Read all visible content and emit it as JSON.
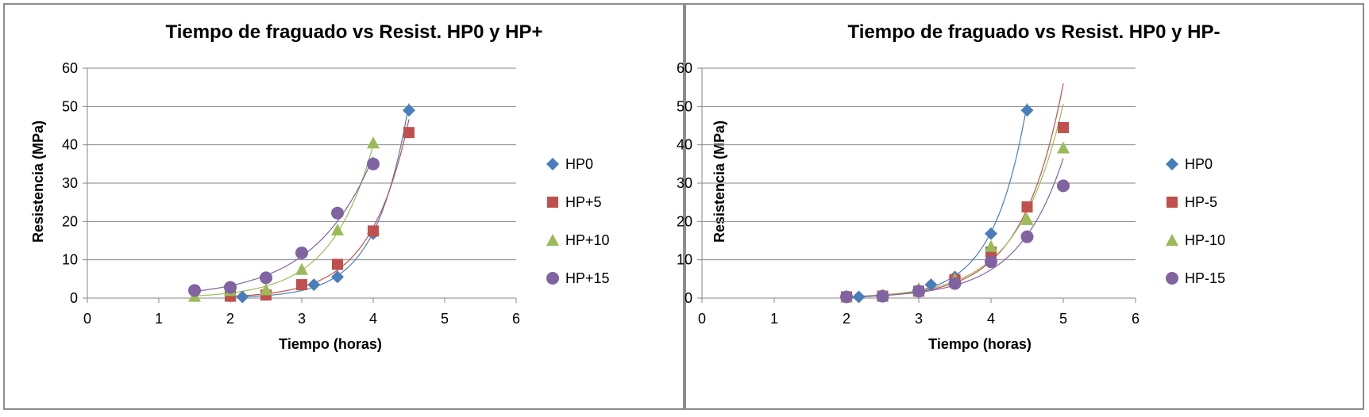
{
  "chart_data": [
    {
      "type": "scatter",
      "title": "Tiempo de fraguado vs Resist. HP0 y HP+",
      "xlabel": "Tiempo (horas)",
      "ylabel": "Resistencia (MPa)",
      "xlim": [
        0,
        6
      ],
      "ylim": [
        0,
        60
      ],
      "xticks": [
        "0",
        "1",
        "2",
        "3",
        "4",
        "5",
        "6"
      ],
      "yticks": [
        "0",
        "10",
        "20",
        "30",
        "40",
        "50",
        "60"
      ],
      "grid": "horizontal",
      "legend_position": "right",
      "trendline": "exponential",
      "series": [
        {
          "name": "HP0",
          "marker": "diamond",
          "color": "#4a7ebb",
          "x": [
            2.17,
            3.17,
            3.5,
            4.0,
            4.5
          ],
          "y": [
            0.3,
            3.5,
            5.5,
            16.8,
            49.0
          ],
          "trend_x": [
            2.17,
            4.5
          ]
        },
        {
          "name": "HP+5",
          "marker": "square",
          "color": "#c0504d",
          "x": [
            2.0,
            2.5,
            3.0,
            3.5,
            4.0,
            4.5
          ],
          "y": [
            0.5,
            0.8,
            3.5,
            8.8,
            17.5,
            43.2
          ],
          "trend_x": [
            2.0,
            4.5
          ]
        },
        {
          "name": "HP+10",
          "marker": "triangle",
          "color": "#9bbb59",
          "x": [
            1.5,
            2.0,
            2.5,
            3.0,
            3.5,
            4.0
          ],
          "y": [
            0.5,
            2.0,
            2.2,
            7.5,
            17.8,
            40.5
          ],
          "trend_x": [
            1.5,
            4.0
          ]
        },
        {
          "name": "HP+15",
          "marker": "circle",
          "color": "#8064a2",
          "x": [
            1.5,
            2.0,
            2.5,
            3.0,
            3.5,
            4.0
          ],
          "y": [
            2.0,
            2.8,
            5.3,
            11.8,
            22.2,
            35.0
          ],
          "trend_x": [
            1.5,
            4.0
          ]
        }
      ]
    },
    {
      "type": "scatter",
      "title": "Tiempo de fraguado vs Resist. HP0 y HP-",
      "xlabel": "Tiempo (horas)",
      "ylabel": "Resistencia (MPa)",
      "xlim": [
        0,
        6
      ],
      "ylim": [
        0,
        60
      ],
      "xticks": [
        "0",
        "1",
        "2",
        "3",
        "4",
        "5",
        "6"
      ],
      "yticks": [
        "0",
        "10",
        "20",
        "30",
        "40",
        "50",
        "60"
      ],
      "grid": "horizontal",
      "legend_position": "right",
      "trendline": "exponential",
      "series": [
        {
          "name": "HP0",
          "marker": "diamond",
          "color": "#4a7ebb",
          "x": [
            2.17,
            3.17,
            3.5,
            4.0,
            4.5
          ],
          "y": [
            0.3,
            3.5,
            5.5,
            16.8,
            49.0
          ],
          "trend_x": [
            2.17,
            4.5
          ]
        },
        {
          "name": "HP-5",
          "marker": "square",
          "color": "#c0504d",
          "x": [
            2.0,
            2.5,
            3.0,
            3.5,
            4.0,
            4.5,
            5.0
          ],
          "y": [
            0.3,
            0.5,
            1.8,
            4.8,
            12.0,
            23.8,
            44.5
          ],
          "trend_x": [
            2.0,
            5.0
          ]
        },
        {
          "name": "HP-10",
          "marker": "triangle",
          "color": "#9bbb59",
          "x": [
            2.0,
            2.5,
            3.0,
            3.5,
            4.0,
            4.5,
            5.0
          ],
          "y": [
            0.3,
            0.8,
            2.5,
            5.0,
            13.5,
            20.5,
            39.2
          ],
          "trend_x": [
            2.0,
            5.0
          ]
        },
        {
          "name": "HP-15",
          "marker": "circle",
          "color": "#8064a2",
          "x": [
            2.0,
            2.5,
            3.0,
            3.5,
            4.0,
            4.5,
            5.0
          ],
          "y": [
            0.3,
            0.5,
            1.8,
            3.8,
            9.5,
            16.0,
            29.3
          ],
          "trend_x": [
            2.0,
            5.0
          ]
        }
      ]
    }
  ]
}
